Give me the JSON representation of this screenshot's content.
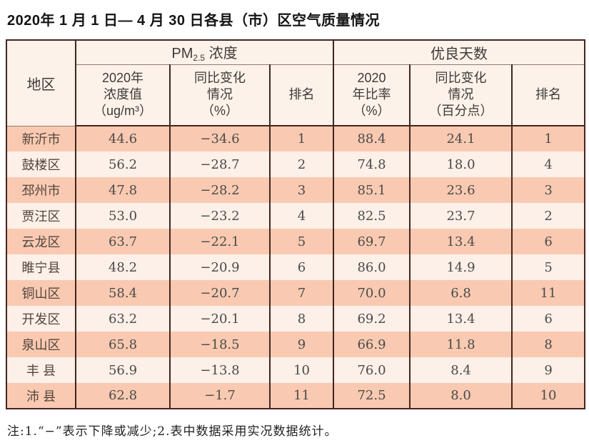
{
  "page": {
    "title": "2020年 1 月 1 日— 4 月 30 日各县（市）区空气质量情况"
  },
  "colors": {
    "row_salmon": "#f9cab1",
    "row_light": "#fcf0e8",
    "header_bg": "#fcf2ea",
    "table_border": "#43251f"
  },
  "table": {
    "region_header": "地区",
    "group_pm": {
      "prefix": "PM",
      "sub": "2.5",
      "suffix": " 浓度"
    },
    "group_good_days": "优良天数",
    "sub_headers": {
      "pm_value": "2020年\n浓度值\n（ug/m³）",
      "pm_change": "同比变化\n情况\n（%）",
      "pm_rank": "排名",
      "good_rate": "2020\n年比率\n（%）",
      "good_change": "同比变化\n情况\n（百分点）",
      "good_rank": "排名"
    },
    "columns_order": [
      "region",
      "pm_value",
      "pm_change",
      "pm_rank",
      "good_rate",
      "good_change",
      "good_rank"
    ],
    "rows": [
      {
        "region": "新沂市",
        "pm_value": "44.6",
        "pm_change": "−34.6",
        "pm_rank": "1",
        "good_rate": "88.4",
        "good_change": "24.1",
        "good_rank": "1"
      },
      {
        "region": "鼓楼区",
        "pm_value": "56.2",
        "pm_change": "−28.7",
        "pm_rank": "2",
        "good_rate": "74.8",
        "good_change": "18.0",
        "good_rank": "4"
      },
      {
        "region": "邳州市",
        "pm_value": "47.8",
        "pm_change": "−28.2",
        "pm_rank": "3",
        "good_rate": "85.1",
        "good_change": "23.6",
        "good_rank": "3"
      },
      {
        "region": "贾汪区",
        "pm_value": "53.0",
        "pm_change": "−23.2",
        "pm_rank": "4",
        "good_rate": "82.5",
        "good_change": "23.7",
        "good_rank": "2"
      },
      {
        "region": "云龙区",
        "pm_value": "63.7",
        "pm_change": "−22.1",
        "pm_rank": "5",
        "good_rate": "69.7",
        "good_change": "13.4",
        "good_rank": "6"
      },
      {
        "region": "睢宁县",
        "pm_value": "48.2",
        "pm_change": "−20.9",
        "pm_rank": "6",
        "good_rate": "86.0",
        "good_change": "14.9",
        "good_rank": "5"
      },
      {
        "region": "铜山区",
        "pm_value": "58.4",
        "pm_change": "−20.7",
        "pm_rank": "7",
        "good_rate": "70.0",
        "good_change": "6.8",
        "good_rank": "11"
      },
      {
        "region": "开发区",
        "pm_value": "63.2",
        "pm_change": "−20.1",
        "pm_rank": "8",
        "good_rate": "69.2",
        "good_change": "13.4",
        "good_rank": "6"
      },
      {
        "region": "泉山区",
        "pm_value": "65.8",
        "pm_change": "−18.5",
        "pm_rank": "9",
        "good_rate": "66.9",
        "good_change": "11.8",
        "good_rank": "8"
      },
      {
        "region": "丰 县",
        "pm_value": "56.9",
        "pm_change": "−13.8",
        "pm_rank": "10",
        "good_rate": "76.0",
        "good_change": "8.4",
        "good_rank": "9"
      },
      {
        "region": "沛 县",
        "pm_value": "62.8",
        "pm_change": "−1.7",
        "pm_rank": "11",
        "good_rate": "72.5",
        "good_change": "8.0",
        "good_rank": "10"
      }
    ]
  },
  "footnote": "注:1.“−”表示下降或减少;2.表中数据采用实况数据统计。"
}
